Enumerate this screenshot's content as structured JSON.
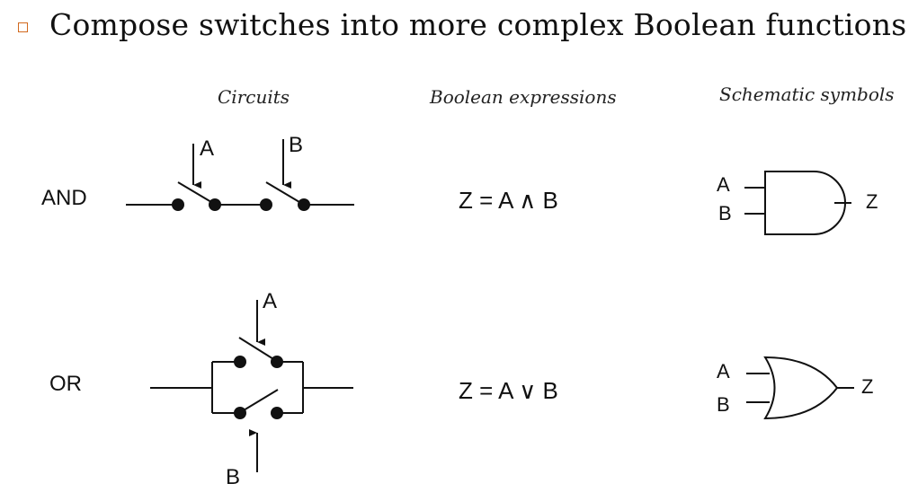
{
  "title": "Compose switches into more complex Boolean functions",
  "columns": {
    "circuits": "Circuits",
    "expressions": "Boolean expressions",
    "symbols": "Schematic symbols"
  },
  "rows": {
    "and": {
      "label": "AND",
      "expression": "Z = A ∧ B",
      "switch_a": "A",
      "switch_b": "B",
      "gate_in_a": "A",
      "gate_in_b": "B",
      "gate_out": "Z"
    },
    "or": {
      "label": "OR",
      "expression": "Z = A ∨ B",
      "switch_a": "A",
      "switch_b": "B",
      "gate_in_a": "A",
      "gate_in_b": "B",
      "gate_out": "Z"
    }
  },
  "colors": {
    "bullet": "#d2691e",
    "ink": "#111111"
  }
}
